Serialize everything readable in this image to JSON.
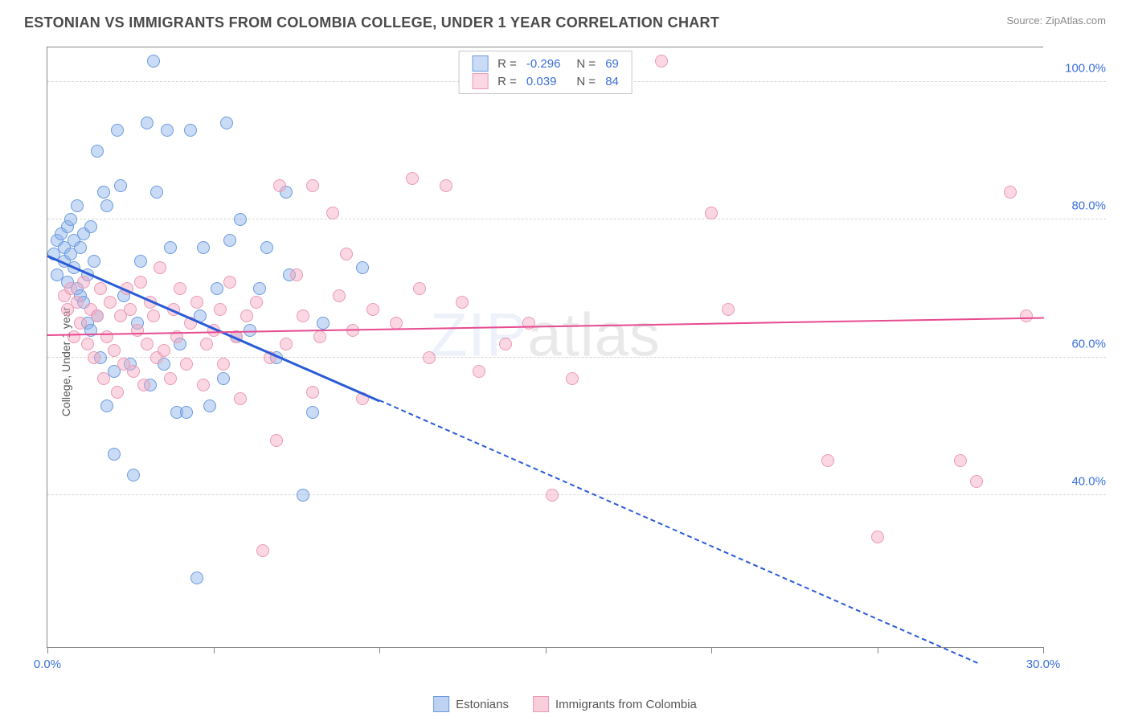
{
  "header": {
    "title": "ESTONIAN VS IMMIGRANTS FROM COLOMBIA COLLEGE, UNDER 1 YEAR CORRELATION CHART",
    "source_prefix": "Source: ",
    "source_name": "ZipAtlas.com"
  },
  "watermark": {
    "part1": "ZIP",
    "part2": "atlas"
  },
  "chart": {
    "type": "scatter",
    "ylabel": "College, Under 1 year",
    "xlim": [
      0,
      30
    ],
    "ylim": [
      18,
      105
    ],
    "xticks": [
      0,
      5,
      10,
      15,
      20,
      25,
      30
    ],
    "xtick_labels": {
      "0": "0.0%",
      "30": "30.0%"
    },
    "yticks": [
      40,
      60,
      80,
      100
    ],
    "ytick_labels": [
      "40.0%",
      "60.0%",
      "80.0%",
      "100.0%"
    ],
    "grid_color": "#d5d5d5",
    "background_color": "#ffffff",
    "axis_color": "#888888",
    "tick_font_color": "#3a6fd8",
    "tick_fontsize": 15,
    "label_fontsize": 14,
    "title_fontsize": 18,
    "point_radius": 8,
    "point_stroke_width": 1.5,
    "series": [
      {
        "name": "Estonians",
        "fill": "rgba(137,175,232,0.45)",
        "stroke": "#6a9ae0",
        "R": "-0.296",
        "N": "69",
        "trend": {
          "x1": 0,
          "y1": 75,
          "x2": 10,
          "y2": 54,
          "extend_x": 28,
          "extend_y": 16,
          "color": "#2a5bd7",
          "width": 3
        },
        "points": [
          [
            0.2,
            75
          ],
          [
            0.3,
            77
          ],
          [
            0.3,
            72
          ],
          [
            0.4,
            78
          ],
          [
            0.5,
            74
          ],
          [
            0.5,
            76
          ],
          [
            0.6,
            79
          ],
          [
            0.6,
            71
          ],
          [
            0.7,
            75
          ],
          [
            0.7,
            80
          ],
          [
            0.8,
            73
          ],
          [
            0.8,
            77
          ],
          [
            0.9,
            70
          ],
          [
            0.9,
            82
          ],
          [
            1.0,
            69
          ],
          [
            1.0,
            76
          ],
          [
            1.1,
            78
          ],
          [
            1.1,
            68
          ],
          [
            1.2,
            65
          ],
          [
            1.2,
            72
          ],
          [
            1.3,
            79
          ],
          [
            1.3,
            64
          ],
          [
            1.4,
            74
          ],
          [
            1.5,
            66
          ],
          [
            1.5,
            90
          ],
          [
            1.6,
            60
          ],
          [
            1.7,
            84
          ],
          [
            1.8,
            82
          ],
          [
            1.8,
            53
          ],
          [
            2.0,
            58
          ],
          [
            2.0,
            46
          ],
          [
            2.1,
            93
          ],
          [
            2.2,
            85
          ],
          [
            2.3,
            69
          ],
          [
            2.5,
            59
          ],
          [
            2.6,
            43
          ],
          [
            2.7,
            65
          ],
          [
            2.8,
            74
          ],
          [
            3.0,
            94
          ],
          [
            3.1,
            56
          ],
          [
            3.2,
            103
          ],
          [
            3.3,
            84
          ],
          [
            3.5,
            59
          ],
          [
            3.6,
            93
          ],
          [
            3.7,
            76
          ],
          [
            3.9,
            52
          ],
          [
            4.0,
            62
          ],
          [
            4.2,
            52
          ],
          [
            4.3,
            93
          ],
          [
            4.5,
            28
          ],
          [
            4.6,
            66
          ],
          [
            4.7,
            76
          ],
          [
            4.9,
            53
          ],
          [
            5.1,
            70
          ],
          [
            5.3,
            57
          ],
          [
            5.4,
            94
          ],
          [
            5.5,
            77
          ],
          [
            5.7,
            63
          ],
          [
            5.8,
            80
          ],
          [
            6.1,
            64
          ],
          [
            6.4,
            70
          ],
          [
            6.6,
            76
          ],
          [
            6.9,
            60
          ],
          [
            7.2,
            84
          ],
          [
            7.3,
            72
          ],
          [
            7.7,
            40
          ],
          [
            8.0,
            52
          ],
          [
            8.3,
            65
          ],
          [
            9.5,
            73
          ]
        ]
      },
      {
        "name": "Immigrants from Colombia",
        "fill": "rgba(244,166,190,0.45)",
        "stroke": "#eb9ab4",
        "R": "0.039",
        "N": "84",
        "trend": {
          "x1": 0,
          "y1": 63.5,
          "x2": 30,
          "y2": 66,
          "color": "#e74a90",
          "width": 2.5
        },
        "points": [
          [
            0.5,
            69
          ],
          [
            0.6,
            67
          ],
          [
            0.7,
            70
          ],
          [
            0.8,
            63
          ],
          [
            0.9,
            68
          ],
          [
            1.0,
            65
          ],
          [
            1.1,
            71
          ],
          [
            1.2,
            62
          ],
          [
            1.3,
            67
          ],
          [
            1.4,
            60
          ],
          [
            1.5,
            66
          ],
          [
            1.6,
            70
          ],
          [
            1.7,
            57
          ],
          [
            1.8,
            63
          ],
          [
            1.9,
            68
          ],
          [
            2.0,
            61
          ],
          [
            2.1,
            55
          ],
          [
            2.2,
            66
          ],
          [
            2.3,
            59
          ],
          [
            2.4,
            70
          ],
          [
            2.5,
            67
          ],
          [
            2.6,
            58
          ],
          [
            2.7,
            64
          ],
          [
            2.8,
            71
          ],
          [
            2.9,
            56
          ],
          [
            3.0,
            62
          ],
          [
            3.1,
            68
          ],
          [
            3.2,
            66
          ],
          [
            3.3,
            60
          ],
          [
            3.4,
            73
          ],
          [
            3.5,
            61
          ],
          [
            3.7,
            57
          ],
          [
            3.8,
            67
          ],
          [
            3.9,
            63
          ],
          [
            4.0,
            70
          ],
          [
            4.2,
            59
          ],
          [
            4.3,
            65
          ],
          [
            4.5,
            68
          ],
          [
            4.7,
            56
          ],
          [
            4.8,
            62
          ],
          [
            5.0,
            64
          ],
          [
            5.2,
            67
          ],
          [
            5.3,
            59
          ],
          [
            5.5,
            71
          ],
          [
            5.7,
            63
          ],
          [
            5.8,
            54
          ],
          [
            6.0,
            66
          ],
          [
            6.3,
            68
          ],
          [
            6.5,
            32
          ],
          [
            6.7,
            60
          ],
          [
            6.9,
            48
          ],
          [
            7.0,
            85
          ],
          [
            7.2,
            62
          ],
          [
            7.5,
            72
          ],
          [
            7.7,
            66
          ],
          [
            8.0,
            85
          ],
          [
            8.0,
            55
          ],
          [
            8.2,
            63
          ],
          [
            8.6,
            81
          ],
          [
            8.8,
            69
          ],
          [
            9.0,
            75
          ],
          [
            9.2,
            64
          ],
          [
            9.5,
            54
          ],
          [
            9.8,
            67
          ],
          [
            10.5,
            65
          ],
          [
            11.0,
            86
          ],
          [
            11.2,
            70
          ],
          [
            11.5,
            60
          ],
          [
            12.0,
            85
          ],
          [
            12.5,
            68
          ],
          [
            13.0,
            58
          ],
          [
            13.8,
            62
          ],
          [
            14.5,
            65
          ],
          [
            15.2,
            40
          ],
          [
            15.8,
            57
          ],
          [
            18.5,
            103
          ],
          [
            20.0,
            81
          ],
          [
            20.5,
            67
          ],
          [
            23.5,
            45
          ],
          [
            25.0,
            34
          ],
          [
            27.5,
            45
          ],
          [
            28.0,
            42
          ],
          [
            29.0,
            84
          ],
          [
            29.5,
            66
          ]
        ]
      }
    ],
    "legend_bottom": [
      {
        "label": "Estonians",
        "swatch_fill": "rgba(137,175,232,0.55)",
        "swatch_stroke": "#6a9ae0"
      },
      {
        "label": "Immigrants from Colombia",
        "swatch_fill": "rgba(244,166,190,0.55)",
        "swatch_stroke": "#eb9ab4"
      }
    ],
    "legend_top": {
      "r_label": "R =",
      "n_label": "N =",
      "value_color": "#3a6fd8",
      "label_color": "#555"
    }
  }
}
